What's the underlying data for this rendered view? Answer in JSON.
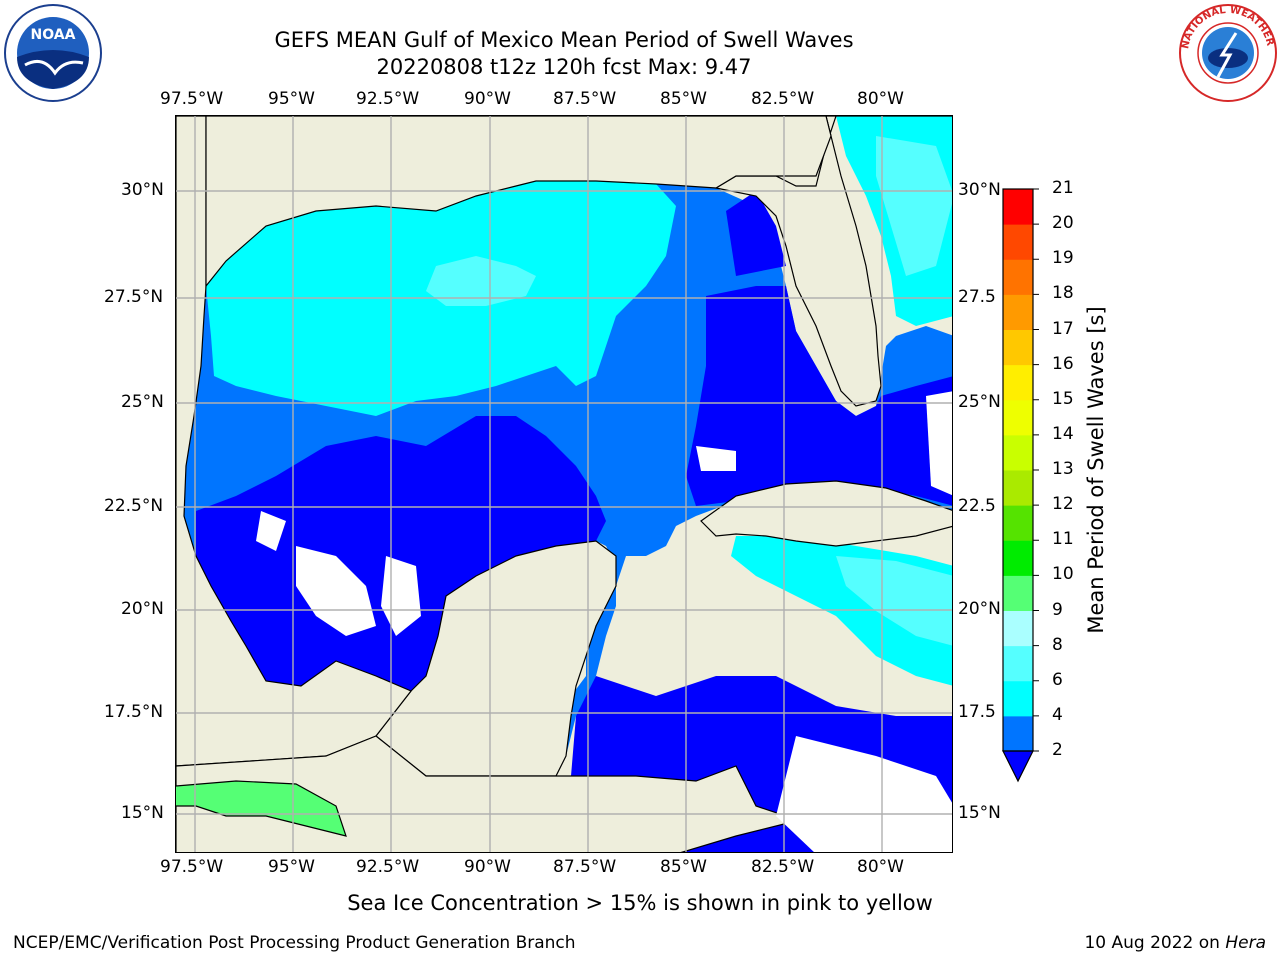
{
  "title": {
    "line1": "GEFS MEAN Gulf of Mexico Mean Period of Swell Waves",
    "line2": "20220808 t12z 120h fcst   Max: 9.47"
  },
  "logos": {
    "left": {
      "text": "NOAA",
      "icon": "noaa-logo-icon"
    },
    "right": {
      "text": "NATIONAL WEATHER SERVICE",
      "icon": "nws-logo-icon"
    }
  },
  "map": {
    "type": "filled-contour-map",
    "region": "Gulf of Mexico",
    "longitude_ticks": [
      "97.5°W",
      "95°W",
      "92.5°W",
      "90°W",
      "87.5°W",
      "85°W",
      "82.5°W",
      "80°W"
    ],
    "latitude_ticks_left": [
      "30°N",
      "27.5°N",
      "25°N",
      "22.5°N",
      "20°N",
      "17.5°N",
      "15°N"
    ],
    "latitude_ticks_right": [
      "30°N",
      "27.5",
      "25°N",
      "22.5",
      "20°N",
      "17.5",
      "15°N"
    ],
    "land_color": "#eeeedc",
    "grid": true,
    "extent": {
      "lon_min": -98,
      "lon_max": -78.1,
      "lat_min": 14,
      "lat_max": 31.8
    }
  },
  "colorbar": {
    "label": "Mean Period of Swell Waves [s]",
    "ticks": [
      "2",
      "4",
      "6",
      "8",
      "9",
      "10",
      "11",
      "12",
      "13",
      "14",
      "15",
      "16",
      "17",
      "18",
      "19",
      "20",
      "21"
    ],
    "levels": [
      2,
      4,
      6,
      8,
      9,
      10,
      11,
      12,
      13,
      14,
      15,
      16,
      17,
      18,
      19,
      20,
      21
    ],
    "colors": [
      "#0000ff",
      "#0075ff",
      "#00ffff",
      "#55ffff",
      "#aaffff",
      "#55ff75",
      "#00ec00",
      "#55e300",
      "#aaea00",
      "#c9ff00",
      "#eeff00",
      "#ffee00",
      "#ffc800",
      "#ff9a00",
      "#ff7300",
      "#ff4800",
      "#ff0000"
    ],
    "extend": "min"
  },
  "caption": "Sea Ice Concentration > 15% is shown in pink to yellow",
  "footer": {
    "left": "NCEP/EMC/Verification Post Processing Product Generation Branch",
    "right_prefix": "10 Aug 2022 on ",
    "right_host": "Hera"
  }
}
